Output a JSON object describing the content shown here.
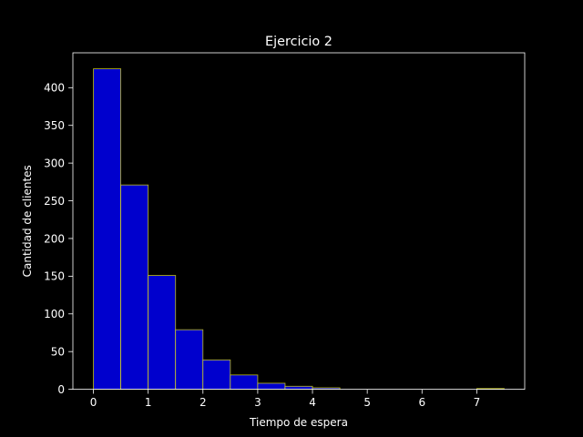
{
  "chart_data": {
    "type": "bar",
    "title": "Ejercicio 2",
    "xlabel": "Tiempo de espera",
    "ylabel": "Cantidad de clientes",
    "bin_edges": [
      0,
      0.5,
      1.0,
      1.5,
      2.0,
      2.5,
      3.0,
      3.5,
      4.0,
      4.5,
      5.0,
      5.5,
      6.0,
      6.5,
      7.0,
      7.5
    ],
    "values": [
      425,
      271,
      151,
      79,
      39,
      19,
      8,
      4,
      2,
      0,
      0,
      0,
      0,
      0,
      1
    ],
    "xlim": [
      -0.375,
      7.875
    ],
    "ylim": [
      0,
      446.25
    ],
    "xticks": [
      "0",
      "1",
      "2",
      "3",
      "4",
      "5",
      "6",
      "7"
    ],
    "yticks": [
      "0",
      "50",
      "100",
      "150",
      "200",
      "250",
      "300",
      "350",
      "400"
    ],
    "grid": false,
    "colors": {
      "background": "#000000",
      "bar_fill": "#0000cd",
      "bar_edge": "#ffff00",
      "axes": "#ffffff",
      "text": "#ffffff"
    }
  }
}
